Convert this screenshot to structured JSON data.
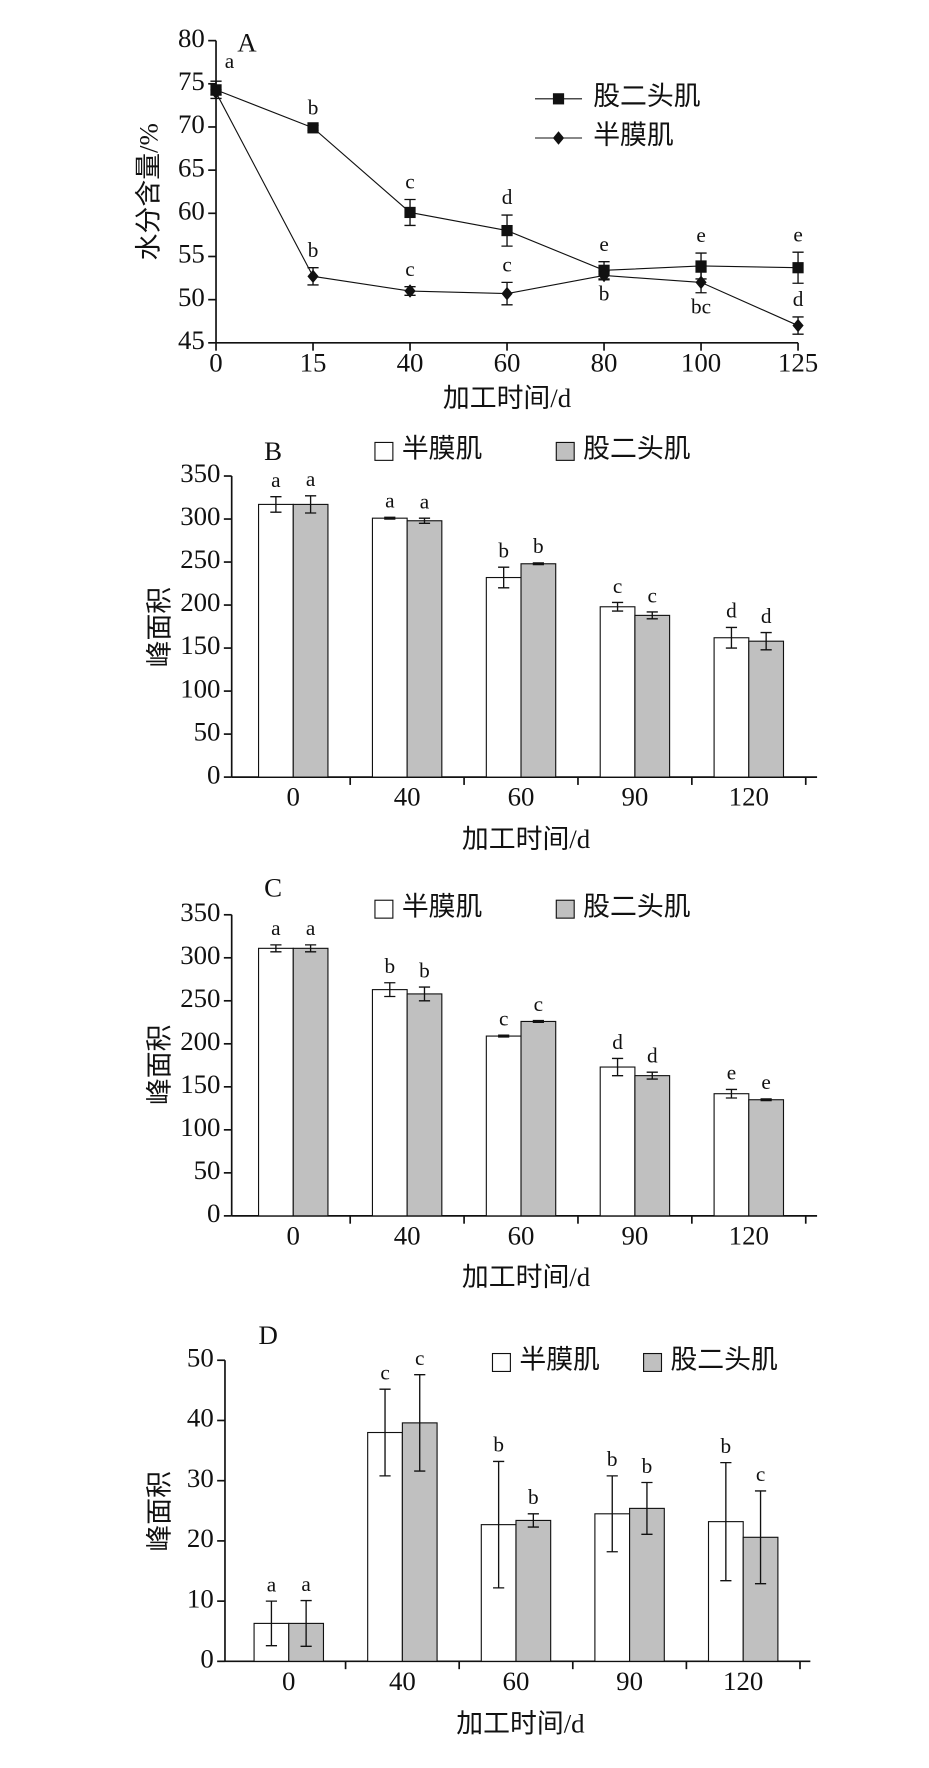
{
  "chart_data": [
    {
      "type": "line",
      "panel": "A",
      "x_label": "加工时间/d",
      "y_label": "水分含量/%",
      "categories": [
        "0",
        "15",
        "40",
        "60",
        "80",
        "100",
        "125"
      ],
      "series": [
        {
          "name": "股二头肌",
          "color": "#111111",
          "marker": "square",
          "values": [
            74.3,
            69.9,
            60.1,
            58.0,
            53.4,
            53.9,
            53.7
          ],
          "errors": [
            1.0,
            0.3,
            1.5,
            1.8,
            1.0,
            1.5,
            1.8
          ],
          "letters": [
            "a",
            "b",
            "c",
            "d",
            "e",
            "e",
            "e"
          ]
        },
        {
          "name": "半膜肌",
          "color": "#111111",
          "marker": "diamond",
          "values": [
            74.0,
            52.7,
            51.0,
            50.7,
            52.8,
            52.0,
            47.0
          ],
          "errors": [
            0.3,
            1.0,
            0.5,
            1.3,
            0.5,
            1.2,
            1.0
          ],
          "letters": [
            null,
            "b",
            "c",
            "c",
            "b",
            "bc",
            "d"
          ]
        }
      ],
      "ylim": [
        45,
        80
      ],
      "yticks": [
        45,
        50,
        55,
        60,
        65,
        70,
        75,
        80
      ]
    },
    {
      "type": "bar",
      "panel": "B",
      "x_label": "加工时间/d",
      "y_label": "峰面积",
      "categories": [
        "0",
        "40",
        "60",
        "90",
        "120"
      ],
      "series": [
        {
          "name": "半膜肌",
          "color": "#ffffff",
          "values": [
            317,
            301,
            232,
            198,
            162
          ],
          "errors": [
            9,
            1,
            12,
            5,
            12
          ],
          "letters": [
            "a",
            "a",
            "b",
            "c",
            "d"
          ]
        },
        {
          "name": "股二头肌",
          "color": "#c0c0c0",
          "values": [
            317,
            298,
            248,
            188,
            158
          ],
          "errors": [
            10,
            3,
            1,
            4,
            10
          ],
          "letters": [
            "a",
            "a",
            "b",
            "c",
            "d"
          ]
        }
      ],
      "ylim": [
        0,
        350
      ],
      "yticks": [
        0,
        50,
        100,
        150,
        200,
        250,
        300,
        350
      ]
    },
    {
      "type": "bar",
      "panel": "C",
      "x_label": "加工时间/d",
      "y_label": "峰面积",
      "categories": [
        "0",
        "40",
        "60",
        "90",
        "120"
      ],
      "series": [
        {
          "name": "半膜肌",
          "color": "#ffffff",
          "values": [
            311,
            263,
            209,
            173,
            142
          ],
          "errors": [
            4,
            8,
            1,
            10,
            5
          ],
          "letters": [
            "a",
            "b",
            "c",
            "d",
            "e"
          ]
        },
        {
          "name": "股二头肌",
          "color": "#c0c0c0",
          "values": [
            311,
            258,
            226,
            163,
            135
          ],
          "errors": [
            4,
            8,
            1,
            4,
            1
          ],
          "letters": [
            "a",
            "b",
            "c",
            "d",
            "e"
          ]
        }
      ],
      "ylim": [
        0,
        350
      ],
      "yticks": [
        0,
        50,
        100,
        150,
        200,
        250,
        300,
        350
      ]
    },
    {
      "type": "bar",
      "panel": "D",
      "x_label": "加工时间/d",
      "y_label": "峰面积",
      "categories": [
        "0",
        "40",
        "60",
        "90",
        "120"
      ],
      "series": [
        {
          "name": "半膜肌",
          "color": "#ffffff",
          "values": [
            6.3,
            38,
            22.7,
            24.5,
            23.2
          ],
          "errors": [
            3.7,
            7.2,
            10.5,
            6.3,
            9.8
          ],
          "letters": [
            "a",
            "c",
            "b",
            "b",
            "b"
          ]
        },
        {
          "name": "股二头肌",
          "color": "#c0c0c0",
          "values": [
            6.3,
            39.6,
            23.4,
            25.4,
            20.6
          ],
          "errors": [
            3.8,
            8,
            1.1,
            4.3,
            7.7
          ],
          "letters": [
            "a",
            "c",
            "b",
            "b",
            "c"
          ]
        }
      ],
      "ylim": [
        0,
        50
      ],
      "yticks": [
        0,
        10,
        20,
        30,
        40,
        50
      ]
    }
  ]
}
